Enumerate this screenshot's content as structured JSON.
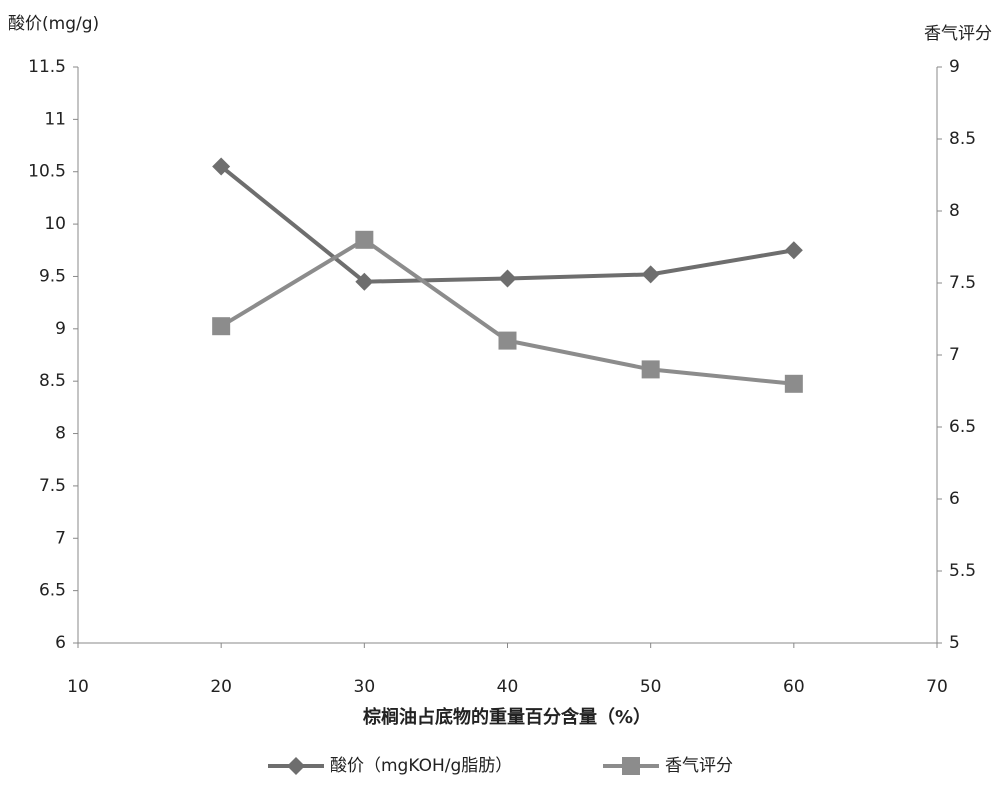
{
  "chart_data": {
    "type": "line",
    "y_label": "酸价(mg/g)",
    "y2_label": "香气评分",
    "x_label": "棕榈油占底物的重量百分含量（%）",
    "x": [
      20,
      30,
      40,
      50,
      60
    ],
    "series": [
      {
        "name": "酸价（mgKOH/g脂肪）",
        "color": "#6e6e6e",
        "marker": "diamond",
        "values": [
          10.55,
          9.45,
          9.48,
          9.52,
          9.75
        ]
      },
      {
        "name": "香气评分",
        "color": "#8c8c8c",
        "marker": "square",
        "axis": "y2",
        "values": [
          7.2,
          7.8,
          7.1,
          6.9,
          6.8
        ]
      }
    ],
    "xlim": [
      10,
      70
    ],
    "xticks": [
      10,
      20,
      30,
      40,
      50,
      60,
      70
    ],
    "ylim": [
      6,
      11.5
    ],
    "yticks": [
      6,
      6.5,
      7,
      7.5,
      8,
      8.5,
      9,
      9.5,
      10,
      10.5,
      11,
      11.5
    ],
    "y2lim": [
      5,
      9
    ],
    "y2ticks": [
      5,
      5.5,
      6,
      6.5,
      7,
      7.5,
      8,
      8.5,
      9
    ],
    "legend": "bottom",
    "grid": false
  }
}
